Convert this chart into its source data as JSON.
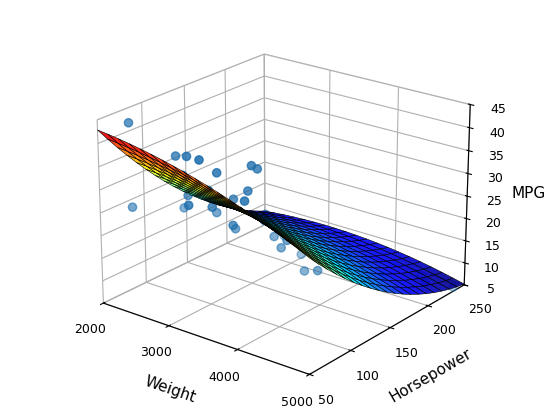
{
  "title": "",
  "xlabel": "Weight",
  "ylabel": "Horsepower",
  "zlabel": "MPG",
  "xlim": [
    2000,
    5000
  ],
  "ylim": [
    50,
    250
  ],
  "zlim": [
    5,
    45
  ],
  "xticks": [
    2000,
    3000,
    4000,
    5000
  ],
  "yticks": [
    50,
    100,
    150,
    200,
    250
  ],
  "zticks": [
    5,
    10,
    15,
    20,
    25,
    30,
    35,
    40,
    45
  ],
  "scatter_color": "#1f6fad",
  "scatter_size": 35,
  "weight": [
    2130,
    2264,
    2372,
    2650,
    2653,
    2804,
    2855,
    2875,
    2979,
    3003,
    3012,
    3035,
    3038,
    3158,
    3167,
    3248,
    3282,
    3336,
    3421,
    3425,
    3432,
    3449,
    3481,
    3504,
    3505,
    3570,
    3609,
    3639,
    3672,
    3693,
    3730,
    3756,
    3830,
    3892,
    3900,
    4053,
    4054,
    4082,
    4100,
    4129,
    4135,
    4176,
    4215,
    4236,
    4277,
    4382,
    4464,
    4735,
    4951,
    5140
  ],
  "horsepower": [
    75,
    67,
    95,
    97,
    88,
    90,
    85,
    65,
    100,
    75,
    68,
    105,
    85,
    90,
    95,
    110,
    105,
    100,
    75,
    115,
    110,
    120,
    150,
    125,
    100,
    130,
    115,
    140,
    130,
    110,
    150,
    130,
    165,
    140,
    155,
    175,
    160,
    140,
    175,
    170,
    175,
    155,
    190,
    165,
    175,
    175,
    190,
    215,
    200,
    220
  ],
  "mpg": [
    43,
    26,
    33,
    25,
    37,
    29,
    38,
    36,
    30,
    29,
    36,
    25,
    38,
    28,
    35,
    22,
    29,
    24,
    32,
    36,
    31,
    35,
    18,
    25,
    30,
    20,
    25,
    20,
    18,
    26,
    15,
    20,
    17,
    13,
    15,
    14,
    15,
    14,
    16,
    14,
    14,
    15,
    12,
    13,
    12,
    11,
    10,
    9,
    10,
    8
  ],
  "surface_cmap": "jet",
  "surface_n": 20,
  "elev": 22,
  "azim": -52
}
